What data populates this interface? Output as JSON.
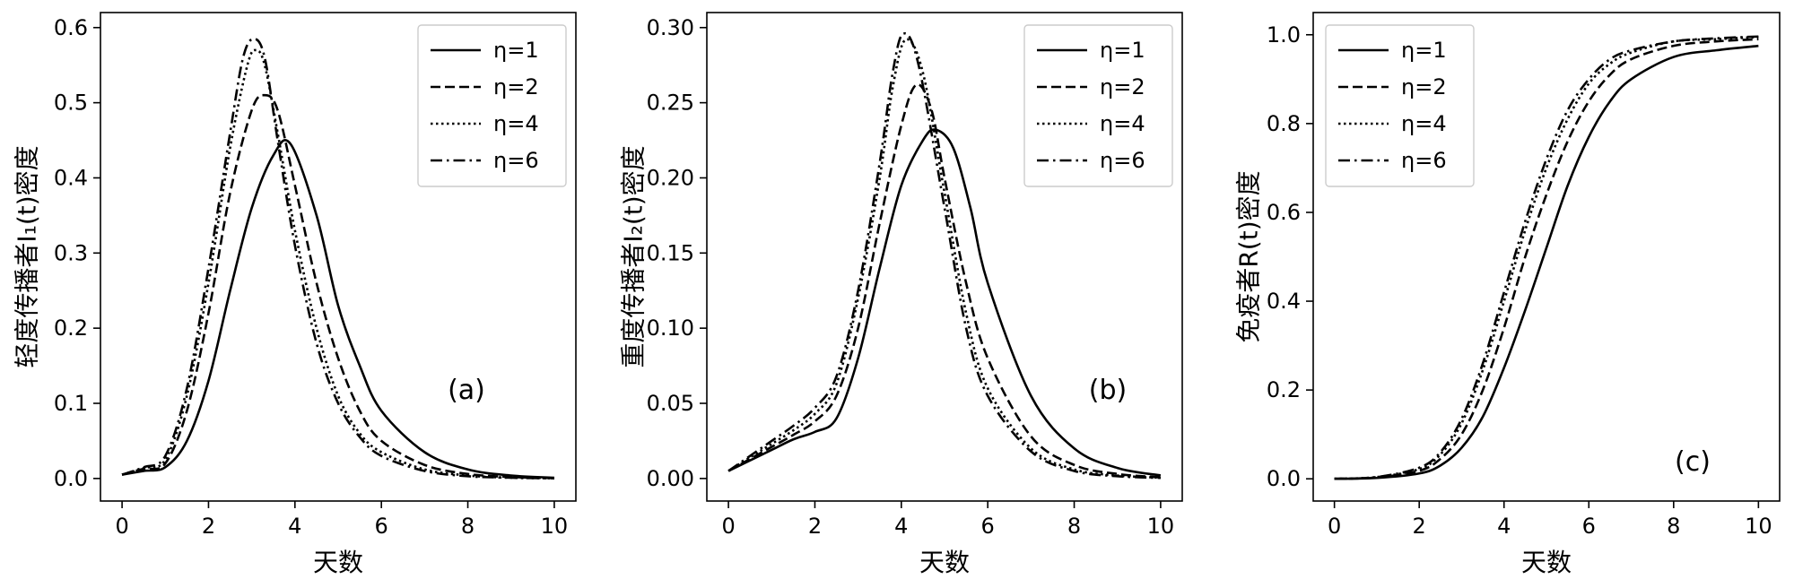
{
  "chart_data": [
    {
      "type": "line",
      "panel_label": "(a)",
      "xlabel": "天数",
      "ylabel": "轻度传播者I₁(t)密度",
      "xlim": [
        -0.5,
        10.5
      ],
      "ylim": [
        -0.03,
        0.62
      ],
      "xticks": [
        0,
        2,
        4,
        6,
        8,
        10
      ],
      "yticks": [
        0.0,
        0.1,
        0.2,
        0.3,
        0.4,
        0.5,
        0.6
      ],
      "ytick_labels": [
        "0.0",
        "0.1",
        "0.2",
        "0.3",
        "0.4",
        "0.5",
        "0.6"
      ],
      "legend_position": "top-right",
      "series": [
        {
          "name": "η=1",
          "dash": "solid",
          "x": [
            0,
            0.5,
            1,
            1.5,
            2,
            2.5,
            3,
            3.5,
            3.9,
            4.5,
            5,
            5.5,
            6,
            7,
            8,
            9,
            10
          ],
          "y": [
            0.005,
            0.01,
            0.015,
            0.05,
            0.13,
            0.25,
            0.36,
            0.43,
            0.445,
            0.35,
            0.23,
            0.15,
            0.09,
            0.035,
            0.012,
            0.004,
            0.001
          ]
        },
        {
          "name": "η=2",
          "dash": "dashed",
          "x": [
            0,
            0.5,
            1,
            1.5,
            2,
            2.5,
            3,
            3.3,
            3.6,
            4,
            4.5,
            5,
            5.5,
            6,
            7,
            8,
            9,
            10
          ],
          "y": [
            0.005,
            0.013,
            0.02,
            0.09,
            0.22,
            0.38,
            0.49,
            0.51,
            0.49,
            0.39,
            0.26,
            0.16,
            0.09,
            0.05,
            0.018,
            0.006,
            0.002,
            0.0005
          ]
        },
        {
          "name": "η=4",
          "dash": "dotted",
          "x": [
            0,
            0.5,
            1,
            1.5,
            2,
            2.5,
            2.9,
            3.1,
            3.3,
            3.6,
            4,
            4.5,
            5,
            5.5,
            6,
            7,
            8,
            9,
            10
          ],
          "y": [
            0.005,
            0.014,
            0.025,
            0.11,
            0.26,
            0.44,
            0.55,
            0.57,
            0.55,
            0.46,
            0.33,
            0.2,
            0.11,
            0.06,
            0.035,
            0.012,
            0.004,
            0.001,
            0.0003
          ]
        },
        {
          "name": "η=6",
          "dash": "dashdot",
          "x": [
            0,
            0.5,
            1,
            1.5,
            2,
            2.5,
            2.8,
            3.05,
            3.3,
            3.6,
            4,
            4.5,
            5,
            5.5,
            6,
            7,
            8,
            9,
            10
          ],
          "y": [
            0.005,
            0.015,
            0.03,
            0.12,
            0.28,
            0.46,
            0.56,
            0.585,
            0.56,
            0.45,
            0.31,
            0.18,
            0.1,
            0.055,
            0.03,
            0.01,
            0.003,
            0.001,
            0.0002
          ]
        }
      ]
    },
    {
      "type": "line",
      "panel_label": "(b)",
      "xlabel": "天数",
      "ylabel": "重度传播者I₂(t)密度",
      "xlim": [
        -0.5,
        10.5
      ],
      "ylim": [
        -0.015,
        0.31
      ],
      "xticks": [
        0,
        2,
        4,
        6,
        8,
        10
      ],
      "yticks": [
        0.0,
        0.05,
        0.1,
        0.15,
        0.2,
        0.25,
        0.3
      ],
      "ytick_labels": [
        "0.00",
        "0.05",
        "0.10",
        "0.15",
        "0.20",
        "0.25",
        "0.30"
      ],
      "legend_position": "top-right",
      "series": [
        {
          "name": "η=1",
          "dash": "solid",
          "x": [
            0,
            0.5,
            1,
            1.5,
            2,
            2.5,
            3,
            3.5,
            4,
            4.5,
            4.8,
            5.2,
            5.6,
            6,
            7,
            8,
            9,
            10
          ],
          "y": [
            0.005,
            0.012,
            0.019,
            0.026,
            0.031,
            0.04,
            0.08,
            0.14,
            0.195,
            0.225,
            0.232,
            0.22,
            0.18,
            0.13,
            0.055,
            0.02,
            0.007,
            0.002
          ]
        },
        {
          "name": "η=2",
          "dash": "dashed",
          "x": [
            0,
            0.5,
            1,
            1.5,
            2,
            2.5,
            3,
            3.5,
            4,
            4.35,
            4.7,
            5,
            5.5,
            6,
            7,
            8,
            9,
            10
          ],
          "y": [
            0.005,
            0.013,
            0.021,
            0.029,
            0.038,
            0.055,
            0.1,
            0.17,
            0.235,
            0.262,
            0.245,
            0.2,
            0.13,
            0.08,
            0.028,
            0.009,
            0.003,
            0.0008
          ]
        },
        {
          "name": "η=4",
          "dash": "dotted",
          "x": [
            0,
            0.5,
            1,
            1.5,
            2,
            2.5,
            3,
            3.5,
            3.8,
            4.1,
            4.5,
            5,
            5.5,
            6,
            7,
            8,
            9,
            10
          ],
          "y": [
            0.005,
            0.014,
            0.023,
            0.032,
            0.043,
            0.063,
            0.12,
            0.2,
            0.26,
            0.292,
            0.27,
            0.19,
            0.11,
            0.06,
            0.02,
            0.006,
            0.002,
            0.0005
          ]
        },
        {
          "name": "η=6",
          "dash": "dashdot",
          "x": [
            0,
            0.5,
            1,
            1.5,
            2,
            2.5,
            3,
            3.5,
            3.8,
            4.05,
            4.4,
            5,
            5.5,
            6,
            7,
            8,
            9,
            10
          ],
          "y": [
            0.005,
            0.015,
            0.025,
            0.035,
            0.047,
            0.068,
            0.125,
            0.21,
            0.27,
            0.296,
            0.275,
            0.18,
            0.1,
            0.055,
            0.018,
            0.005,
            0.0015,
            0.0004
          ]
        }
      ]
    },
    {
      "type": "line",
      "panel_label": "(c)",
      "xlabel": "天数",
      "ylabel": "免疫者R(t)密度",
      "xlim": [
        -0.5,
        10.5
      ],
      "ylim": [
        -0.05,
        1.05
      ],
      "xticks": [
        0,
        2,
        4,
        6,
        8,
        10
      ],
      "yticks": [
        0.0,
        0.2,
        0.4,
        0.6,
        0.8,
        1.0
      ],
      "ytick_labels": [
        "0.0",
        "0.2",
        "0.4",
        "0.6",
        "0.8",
        "1.0"
      ],
      "legend_position": "top-left",
      "series": [
        {
          "name": "η=1",
          "dash": "solid",
          "x": [
            0,
            1,
            2,
            2.5,
            3,
            3.5,
            4,
            4.5,
            5,
            5.5,
            6,
            6.5,
            7,
            8,
            9,
            10
          ],
          "y": [
            0,
            0.002,
            0.012,
            0.03,
            0.07,
            0.14,
            0.25,
            0.38,
            0.52,
            0.66,
            0.77,
            0.85,
            0.9,
            0.95,
            0.965,
            0.975
          ]
        },
        {
          "name": "η=2",
          "dash": "dashed",
          "x": [
            0,
            1,
            2,
            2.5,
            3,
            3.5,
            4,
            4.5,
            5,
            5.5,
            6,
            6.5,
            7,
            8,
            9,
            10
          ],
          "y": [
            0,
            0.003,
            0.018,
            0.045,
            0.1,
            0.2,
            0.34,
            0.5,
            0.64,
            0.76,
            0.85,
            0.91,
            0.945,
            0.975,
            0.985,
            0.99
          ]
        },
        {
          "name": "η=4",
          "dash": "dotted",
          "x": [
            0,
            1,
            2,
            2.5,
            3,
            3.5,
            4,
            4.5,
            5,
            5.5,
            6,
            6.5,
            7,
            8,
            9,
            10
          ],
          "y": [
            0,
            0.004,
            0.022,
            0.055,
            0.125,
            0.245,
            0.4,
            0.56,
            0.7,
            0.81,
            0.89,
            0.935,
            0.96,
            0.985,
            0.99,
            0.995
          ]
        },
        {
          "name": "η=6",
          "dash": "dashdot",
          "x": [
            0,
            1,
            2,
            2.5,
            3,
            3.5,
            4,
            4.5,
            5,
            5.5,
            6,
            6.5,
            7,
            8,
            9,
            10
          ],
          "y": [
            0,
            0.004,
            0.025,
            0.06,
            0.135,
            0.26,
            0.42,
            0.58,
            0.72,
            0.83,
            0.9,
            0.945,
            0.965,
            0.985,
            0.992,
            0.996
          ]
        }
      ]
    }
  ]
}
